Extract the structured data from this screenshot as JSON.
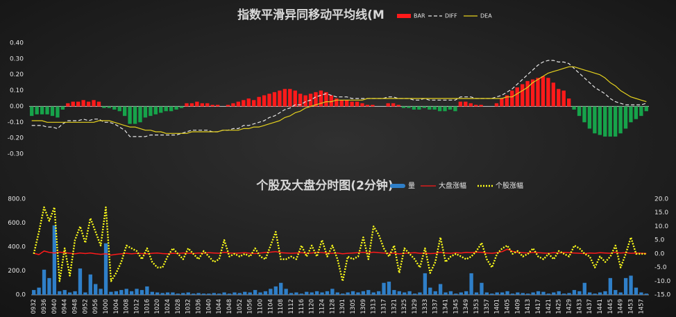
{
  "chart_data": [
    {
      "type": "combo",
      "title": "指数平滑异同移动平均线(M",
      "ylim": [
        -0.3,
        0.4
      ],
      "yticks": [
        {
          "value": 0.4,
          "label": "0.40"
        },
        {
          "value": 0.3,
          "label": "0.30"
        },
        {
          "value": 0.2,
          "label": "0.20"
        },
        {
          "value": 0.1,
          "label": "0.10"
        },
        {
          "value": 0,
          "label": "0.00"
        },
        {
          "value": -0.1,
          "label": "-0.10"
        },
        {
          "value": -0.2,
          "label": "-0.20"
        },
        {
          "value": -0.3,
          "label": "-0.30"
        }
      ],
      "series": [
        {
          "name": "BAR",
          "kind": "bar",
          "color": "#ff1a1a",
          "negative_color": "#16a34a",
          "values": [
            -0.06,
            -0.05,
            -0.05,
            -0.05,
            -0.06,
            -0.07,
            -0.02,
            0.02,
            0.03,
            0.03,
            0.04,
            0.03,
            0.04,
            0.03,
            -0.01,
            -0.01,
            -0.02,
            -0.03,
            -0.06,
            -0.11,
            -0.11,
            -0.1,
            -0.07,
            -0.06,
            -0.05,
            -0.04,
            -0.03,
            -0.03,
            -0.02,
            -0.01,
            0.02,
            0.02,
            0.03,
            0.02,
            0.02,
            0.01,
            0.01,
            0.0,
            0.01,
            0.02,
            0.03,
            0.04,
            0.05,
            0.04,
            0.06,
            0.07,
            0.08,
            0.09,
            0.1,
            0.11,
            0.11,
            0.1,
            0.08,
            0.07,
            0.08,
            0.09,
            0.1,
            0.09,
            0.07,
            0.05,
            0.04,
            0.04,
            0.03,
            0.03,
            0.02,
            0.01,
            0.01,
            0.0,
            0.0,
            0.02,
            0.02,
            0.01,
            -0.01,
            -0.01,
            -0.02,
            -0.02,
            -0.01,
            -0.02,
            -0.02,
            -0.03,
            -0.03,
            -0.02,
            -0.03,
            0.03,
            0.03,
            0.02,
            0.01,
            0.01,
            0.0,
            0.0,
            0.02,
            0.05,
            0.07,
            0.1,
            0.12,
            0.14,
            0.16,
            0.17,
            0.18,
            0.19,
            0.18,
            0.15,
            0.11,
            0.1,
            0.05,
            -0.02,
            -0.06,
            -0.1,
            -0.14,
            -0.17,
            -0.18,
            -0.19,
            -0.19,
            -0.19,
            -0.17,
            -0.14,
            -0.1,
            -0.08,
            -0.06,
            -0.03
          ]
        },
        {
          "name": "DIFF",
          "kind": "line",
          "color": "#e8e8e8",
          "dash": "dashed",
          "values": [
            -0.12,
            -0.12,
            -0.12,
            -0.13,
            -0.13,
            -0.14,
            -0.11,
            -0.09,
            -0.09,
            -0.09,
            -0.08,
            -0.09,
            -0.08,
            -0.08,
            -0.1,
            -0.1,
            -0.11,
            -0.13,
            -0.15,
            -0.19,
            -0.19,
            -0.19,
            -0.19,
            -0.18,
            -0.18,
            -0.18,
            -0.18,
            -0.18,
            -0.18,
            -0.17,
            -0.16,
            -0.15,
            -0.15,
            -0.15,
            -0.15,
            -0.16,
            -0.16,
            -0.15,
            -0.15,
            -0.14,
            -0.14,
            -0.12,
            -0.12,
            -0.11,
            -0.1,
            -0.09,
            -0.07,
            -0.06,
            -0.04,
            -0.02,
            -0.01,
            0.01,
            0.01,
            0.03,
            0.04,
            0.06,
            0.07,
            0.08,
            0.07,
            0.06,
            0.06,
            0.06,
            0.05,
            0.05,
            0.05,
            0.05,
            0.05,
            0.05,
            0.05,
            0.06,
            0.06,
            0.05,
            0.05,
            0.05,
            0.04,
            0.04,
            0.05,
            0.04,
            0.04,
            0.04,
            0.04,
            0.04,
            0.04,
            0.06,
            0.06,
            0.06,
            0.05,
            0.05,
            0.05,
            0.05,
            0.06,
            0.07,
            0.09,
            0.11,
            0.14,
            0.17,
            0.2,
            0.23,
            0.26,
            0.28,
            0.29,
            0.29,
            0.28,
            0.28,
            0.27,
            0.24,
            0.21,
            0.18,
            0.15,
            0.12,
            0.1,
            0.08,
            0.05,
            0.03,
            0.02,
            0.01,
            0.01,
            0.01,
            0.01,
            0.02
          ]
        },
        {
          "name": "DEA",
          "kind": "line",
          "color": "#e6d21e",
          "values": [
            -0.09,
            -0.09,
            -0.09,
            -0.1,
            -0.1,
            -0.1,
            -0.1,
            -0.1,
            -0.1,
            -0.1,
            -0.1,
            -0.1,
            -0.1,
            -0.09,
            -0.09,
            -0.09,
            -0.1,
            -0.11,
            -0.12,
            -0.13,
            -0.13,
            -0.14,
            -0.15,
            -0.15,
            -0.16,
            -0.16,
            -0.17,
            -0.17,
            -0.17,
            -0.17,
            -0.17,
            -0.16,
            -0.16,
            -0.16,
            -0.16,
            -0.16,
            -0.16,
            -0.15,
            -0.15,
            -0.15,
            -0.15,
            -0.14,
            -0.14,
            -0.13,
            -0.13,
            -0.12,
            -0.11,
            -0.1,
            -0.09,
            -0.07,
            -0.06,
            -0.04,
            -0.03,
            -0.01,
            0.0,
            0.01,
            0.02,
            0.03,
            0.03,
            0.04,
            0.04,
            0.04,
            0.04,
            0.04,
            0.04,
            0.05,
            0.05,
            0.05,
            0.05,
            0.05,
            0.05,
            0.05,
            0.05,
            0.05,
            0.05,
            0.05,
            0.05,
            0.05,
            0.05,
            0.05,
            0.05,
            0.05,
            0.05,
            0.05,
            0.05,
            0.05,
            0.05,
            0.05,
            0.05,
            0.05,
            0.05,
            0.05,
            0.06,
            0.06,
            0.08,
            0.1,
            0.12,
            0.15,
            0.17,
            0.19,
            0.21,
            0.22,
            0.23,
            0.24,
            0.25,
            0.25,
            0.24,
            0.23,
            0.22,
            0.21,
            0.2,
            0.18,
            0.15,
            0.13,
            0.1,
            0.08,
            0.06,
            0.05,
            0.04,
            0.03
          ]
        }
      ]
    },
    {
      "type": "combo",
      "title": "个股及大盘分时图(2分钟)",
      "ylim": [
        0,
        800
      ],
      "yticks": [
        {
          "value": 0,
          "label": "0.0"
        },
        {
          "value": 200,
          "label": "200.0"
        },
        {
          "value": 400,
          "label": "400.0"
        },
        {
          "value": 600,
          "label": "600.0"
        },
        {
          "value": 800,
          "label": "800.0"
        }
      ],
      "y2lim": [
        -15,
        20
      ],
      "y2ticks": [
        {
          "value": 20,
          "label": "20.0"
        },
        {
          "value": 15,
          "label": "15.0"
        },
        {
          "value": 10,
          "label": "10.0"
        },
        {
          "value": 5,
          "label": "5.0"
        },
        {
          "value": 0,
          "label": "0.0"
        },
        {
          "value": -5,
          "label": "-5.0"
        },
        {
          "value": -10,
          "label": "-10.0"
        },
        {
          "value": -15,
          "label": "-15.0"
        }
      ],
      "categories": [
        "0932",
        null,
        "0936",
        null,
        "0940",
        null,
        "0944",
        null,
        "0948",
        null,
        "0952",
        null,
        "0956",
        null,
        "1000",
        null,
        "1004",
        null,
        "1008",
        null,
        "1012",
        null,
        "1016",
        null,
        "1020",
        null,
        "1024",
        null,
        "1028",
        null,
        "1032",
        null,
        "1036",
        null,
        "1040",
        null,
        "1044",
        null,
        "1048",
        null,
        "1052",
        null,
        "1056",
        null,
        "1100",
        null,
        "1104",
        null,
        "1108",
        null,
        "1112",
        null,
        "1116",
        null,
        "1120",
        null,
        "1124",
        null,
        "1128",
        null,
        "1301",
        null,
        "1305",
        null,
        "1309",
        null,
        "1313",
        null,
        "1317",
        null,
        "1321",
        null,
        "1325",
        null,
        "1329",
        null,
        "1333",
        null,
        "1337",
        null,
        "1341",
        null,
        "1345",
        null,
        "1349",
        null,
        "1353",
        null,
        "1357",
        null,
        "1401",
        null,
        "1405",
        null,
        "1409",
        null,
        "1413",
        null,
        "1417",
        null,
        "1421",
        null,
        "1425",
        null,
        "1429",
        null,
        "1433",
        null,
        "1437",
        null,
        "1441",
        null,
        "1445",
        null,
        "1449",
        null,
        "1453",
        null,
        "1457",
        null
      ],
      "series": [
        {
          "name": "量",
          "kind": "bar",
          "color": "#2f7fc8",
          "values": [
            40,
            60,
            210,
            140,
            580,
            30,
            40,
            20,
            30,
            220,
            20,
            170,
            90,
            50,
            430,
            25,
            30,
            40,
            50,
            30,
            50,
            40,
            70,
            25,
            20,
            15,
            20,
            20,
            10,
            15,
            20,
            10,
            15,
            10,
            10,
            15,
            10,
            20,
            10,
            20,
            15,
            25,
            20,
            40,
            20,
            30,
            50,
            70,
            100,
            50,
            15,
            20,
            10,
            25,
            20,
            30,
            20,
            30,
            50,
            20,
            10,
            20,
            30,
            20,
            30,
            40,
            20,
            30,
            100,
            110,
            40,
            30,
            20,
            30,
            10,
            20,
            180,
            60,
            30,
            90,
            20,
            30,
            10,
            20,
            30,
            180,
            20,
            100,
            20,
            10,
            20,
            20,
            30,
            10,
            20,
            15,
            10,
            20,
            30,
            25,
            10,
            20,
            30,
            10,
            15,
            40,
            30,
            100,
            20,
            10,
            20,
            30,
            140,
            40,
            20,
            140,
            160,
            60,
            20,
            10
          ]
        },
        {
          "name": "大盘涨幅",
          "kind": "line",
          "axis": "y2",
          "color": "#ff1a1a",
          "values": [
            0.2,
            -0.3,
            1.0,
            0.5,
            0.3,
            0.6,
            0.4,
            0.2,
            0.0,
            0.3,
            0.1,
            0.3,
            0.0,
            -0.2,
            0.0,
            -0.5,
            -0.2,
            0.0,
            0.2,
            0.0,
            0.2,
            0.1,
            0.0,
            0.2,
            0.3,
            0.1,
            0.0,
            0.2,
            0.1,
            0.3,
            0.2,
            0.1,
            0.3,
            0.2,
            0.4,
            0.3,
            0.2,
            0.5,
            0.3,
            0.2,
            0.3,
            0.4,
            0.2,
            0.1,
            0.3,
            0.5,
            0.6,
            0.8,
            0.4,
            0.3,
            0.2,
            0.3,
            0.4,
            0.2,
            0.3,
            0.5,
            0.4,
            0.3,
            0.2,
            0.3,
            0.0,
            0.2,
            0.3,
            0.4,
            0.5,
            0.3,
            0.6,
            0.4,
            0.3,
            0.2,
            0.3,
            0.0,
            0.2,
            0.3,
            0.4,
            0.2,
            0.3,
            0.1,
            0.2,
            0.5,
            0.3,
            0.2,
            0.4,
            0.3,
            0.5,
            0.4,
            0.6,
            0.5,
            0.3,
            0.2,
            0.4,
            0.8,
            1.7,
            0.9,
            0.5,
            0.4,
            0.3,
            0.5,
            0.4,
            0.3,
            0.2,
            0.4,
            0.3,
            0.5,
            0.4,
            0.3,
            0.2,
            0.1,
            0.3,
            0.2,
            0.4,
            0.3,
            0.2,
            0.5,
            0.3,
            0.4,
            0.2,
            0.3,
            0.2,
            0.1
          ]
        },
        {
          "name": "个股涨幅",
          "kind": "line",
          "axis": "y2",
          "color": "#ffff1a",
          "dash": "dotted",
          "values": [
            0,
            8,
            17,
            12,
            17,
            -10,
            2,
            -8,
            5,
            10,
            4,
            13,
            8,
            3,
            17,
            -10,
            -7,
            -3,
            3,
            2,
            1,
            -2,
            2,
            -3,
            -5,
            -5,
            -1,
            2,
            0,
            -2,
            2,
            0,
            -2,
            1,
            -1,
            -3,
            -2,
            5,
            -1,
            0,
            -1,
            0,
            -1,
            2,
            -1,
            -2,
            3,
            8,
            -2,
            -2,
            -1,
            -2,
            3,
            -1,
            3,
            -1,
            5,
            -1,
            3,
            -2,
            -10,
            -1,
            -2,
            -1,
            6,
            -2,
            10,
            7,
            2,
            -1,
            3,
            -7,
            2,
            0,
            -2,
            -5,
            2,
            -7,
            -3,
            6,
            -3,
            -1,
            0,
            -1,
            -2,
            -1,
            1,
            4,
            -2,
            -5,
            0,
            2,
            3,
            0,
            1,
            -1,
            0,
            2,
            -1,
            -2,
            0,
            -2,
            1,
            0,
            -1,
            3,
            2,
            0,
            -1,
            -5,
            -1,
            -3,
            -1,
            3,
            -5,
            0,
            6,
            0,
            0,
            0
          ]
        }
      ]
    }
  ]
}
